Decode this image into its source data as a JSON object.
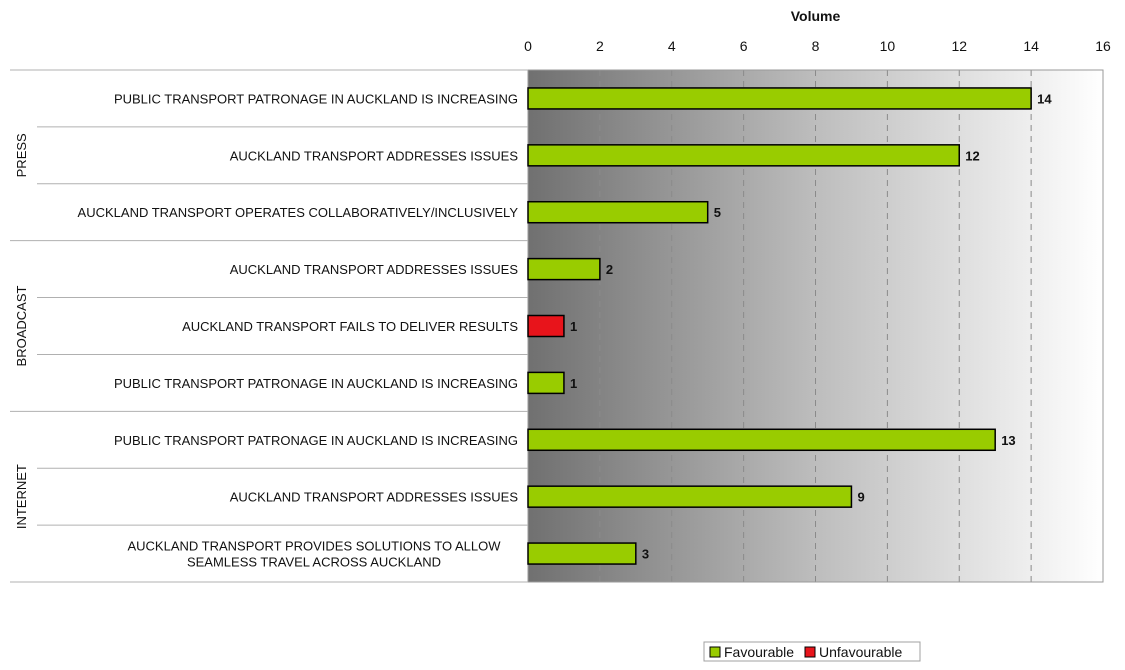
{
  "chart_data": {
    "type": "bar",
    "orientation": "horizontal",
    "xlabel": "Volume",
    "xlim": [
      0,
      16
    ],
    "xticks": [
      0,
      2,
      4,
      6,
      8,
      10,
      12,
      14,
      16
    ],
    "grid": "dashed vertical",
    "legend_position": "bottom-right",
    "series": [
      {
        "name": "Favourable",
        "color": "#99cc00"
      },
      {
        "name": "Unfavourable",
        "color": "#e8141b"
      }
    ],
    "groups": [
      {
        "name": "PRESS",
        "rows": [
          {
            "label": [
              "PUBLIC TRANSPORT PATRONAGE IN AUCKLAND IS INCREASING"
            ],
            "series": "Favourable",
            "value": 14
          },
          {
            "label": [
              "AUCKLAND TRANSPORT ADDRESSES ISSUES"
            ],
            "series": "Favourable",
            "value": 12
          },
          {
            "label": [
              "AUCKLAND TRANSPORT OPERATES COLLABORATIVELY/INCLUSIVELY"
            ],
            "series": "Favourable",
            "value": 5
          }
        ]
      },
      {
        "name": "BROADCAST",
        "rows": [
          {
            "label": [
              "AUCKLAND TRANSPORT ADDRESSES ISSUES"
            ],
            "series": "Favourable",
            "value": 2
          },
          {
            "label": [
              "AUCKLAND TRANSPORT FAILS TO DELIVER RESULTS"
            ],
            "series": "Unfavourable",
            "value": 1
          },
          {
            "label": [
              "PUBLIC TRANSPORT PATRONAGE IN AUCKLAND IS INCREASING"
            ],
            "series": "Favourable",
            "value": 1
          }
        ]
      },
      {
        "name": "INTERNET",
        "rows": [
          {
            "label": [
              "PUBLIC TRANSPORT PATRONAGE IN AUCKLAND IS INCREASING"
            ],
            "series": "Favourable",
            "value": 13
          },
          {
            "label": [
              "AUCKLAND TRANSPORT ADDRESSES ISSUES"
            ],
            "series": "Favourable",
            "value": 9
          },
          {
            "label": [
              "AUCKLAND TRANSPORT PROVIDES SOLUTIONS TO ALLOW",
              "SEAMLESS TRAVEL ACROSS AUCKLAND"
            ],
            "series": "Favourable",
            "value": 3
          }
        ]
      }
    ]
  }
}
